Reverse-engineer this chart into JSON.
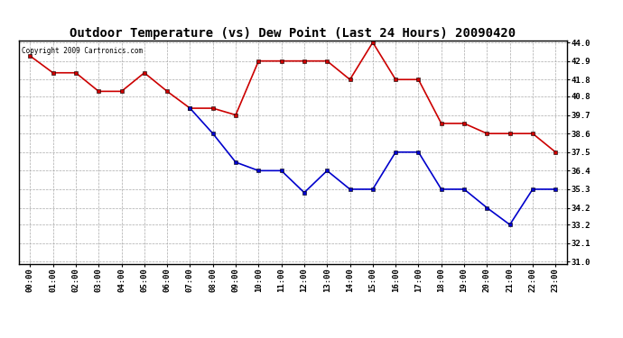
{
  "title": "Outdoor Temperature (vs) Dew Point (Last 24 Hours) 20090420",
  "copyright": "Copyright 2009 Cartronics.com",
  "hours": [
    "00:00",
    "01:00",
    "02:00",
    "03:00",
    "04:00",
    "05:00",
    "06:00",
    "07:00",
    "08:00",
    "09:00",
    "10:00",
    "11:00",
    "12:00",
    "13:00",
    "14:00",
    "15:00",
    "16:00",
    "17:00",
    "18:00",
    "19:00",
    "20:00",
    "21:00",
    "22:00",
    "23:00"
  ],
  "temp": [
    43.2,
    42.2,
    42.2,
    41.1,
    41.1,
    42.2,
    41.1,
    40.1,
    40.1,
    39.7,
    42.9,
    42.9,
    42.9,
    42.9,
    41.8,
    44.0,
    41.8,
    41.8,
    39.2,
    39.2,
    38.6,
    38.6,
    38.6,
    37.5
  ],
  "dew": [
    null,
    null,
    null,
    null,
    null,
    null,
    null,
    40.1,
    38.6,
    36.9,
    36.4,
    36.4,
    35.1,
    36.4,
    35.3,
    35.3,
    37.5,
    37.5,
    35.3,
    35.3,
    34.2,
    33.2,
    35.3,
    35.3
  ],
  "temp_color": "#cc0000",
  "dew_color": "#0000cc",
  "bg_color": "#ffffff",
  "ylim": [
    30.89,
    44.11
  ],
  "yticks": [
    31.0,
    32.1,
    33.2,
    34.2,
    35.3,
    36.4,
    37.5,
    38.6,
    39.7,
    40.8,
    41.8,
    42.9,
    44.0
  ],
  "title_fontsize": 10,
  "markersize": 3,
  "linewidth": 1.2
}
